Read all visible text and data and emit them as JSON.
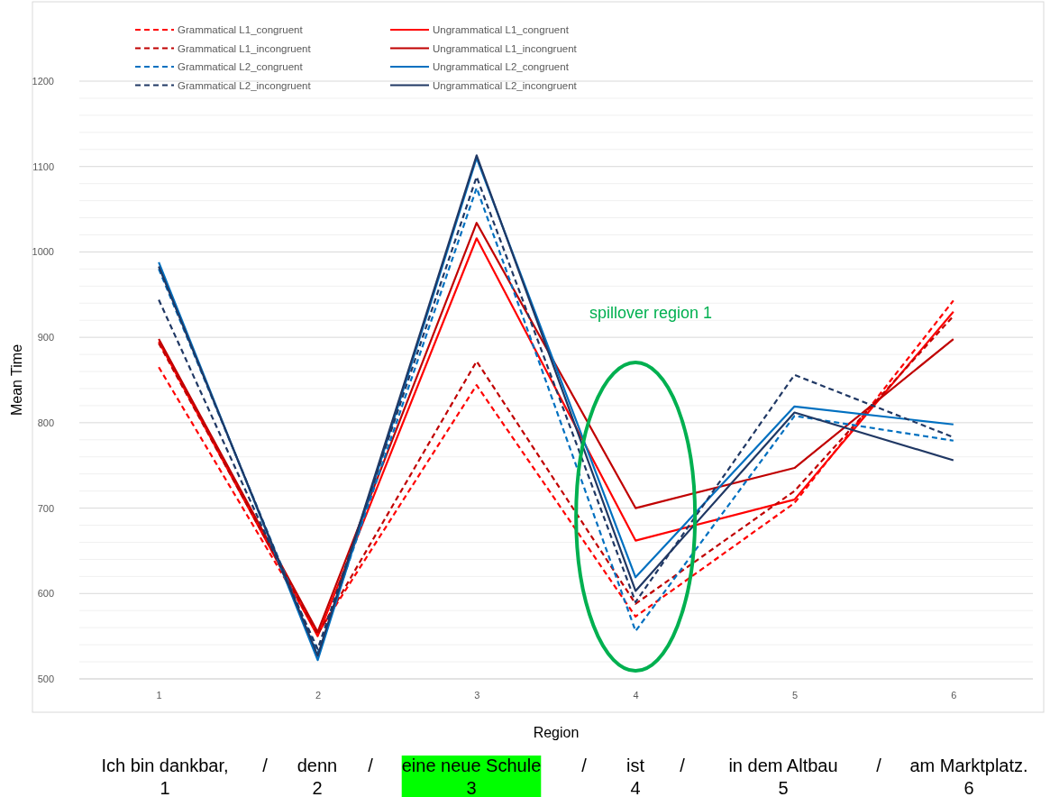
{
  "chart_data": {
    "type": "line",
    "xlabel": "Region",
    "ylabel": "Mean Time",
    "categories": [
      "1",
      "2",
      "3",
      "4",
      "5",
      "6"
    ],
    "ylim": [
      500,
      1200
    ],
    "yticks": [
      500,
      {
        "value": 520,
        "label": null
      },
      {
        "value": 540,
        "label": null
      },
      {
        "value": 560,
        "label": null
      },
      {
        "value": 580,
        "label": null
      },
      600,
      {
        "value": 620,
        "label": null
      },
      {
        "value": 640,
        "label": null
      },
      {
        "value": 660,
        "label": null
      },
      {
        "value": 680,
        "label": null
      },
      700,
      {
        "value": 720,
        "label": null
      },
      {
        "value": 740,
        "label": null
      },
      {
        "value": 760,
        "label": null
      },
      {
        "value": 780,
        "label": null
      },
      800,
      {
        "value": 820,
        "label": null
      },
      {
        "value": 840,
        "label": null
      },
      {
        "value": 860,
        "label": null
      },
      {
        "value": 880,
        "label": null
      },
      900,
      {
        "value": 920,
        "label": null
      },
      {
        "value": 940,
        "label": null
      },
      {
        "value": 960,
        "label": null
      },
      {
        "value": 980,
        "label": null
      },
      1000,
      {
        "value": 1020,
        "label": null
      },
      {
        "value": 1040,
        "label": null
      },
      {
        "value": 1060,
        "label": null
      },
      {
        "value": 1080,
        "label": null
      },
      1100,
      {
        "value": 1120,
        "label": null
      },
      {
        "value": 1140,
        "label": null
      },
      {
        "value": 1160,
        "label": null
      },
      {
        "value": 1180,
        "label": null
      },
      1200
    ],
    "grid": "y",
    "legend": "top",
    "marker": "none",
    "series": [
      {
        "name": "Grammatical L1_congruent",
        "color": "#ff0000",
        "line_style": "dashed",
        "values": [
          865,
          553,
          844,
          573,
          706,
          943
        ]
      },
      {
        "name": "Ungrammatical L1_congruent",
        "color": "#ff0000",
        "line_style": "solid",
        "values": [
          895,
          550,
          1016,
          662,
          710,
          930
        ]
      },
      {
        "name": "Grammatical L1_incongruent",
        "color": "#c00000",
        "line_style": "dashed",
        "values": [
          893,
          552,
          872,
          588,
          720,
          925
        ]
      },
      {
        "name": "Ungrammatical L1_incongruent",
        "color": "#c00000",
        "line_style": "solid",
        "values": [
          898,
          555,
          1034,
          700,
          747,
          898
        ]
      },
      {
        "name": "Grammatical L2_congruent",
        "color": "#0070c0",
        "line_style": "dashed",
        "values": [
          980,
          530,
          1075,
          556,
          808,
          779
        ]
      },
      {
        "name": "Ungrammatical L2_congruent",
        "color": "#0070c0",
        "line_style": "solid",
        "values": [
          988,
          522,
          1110,
          619,
          819,
          798
        ]
      },
      {
        "name": "Grammatical L2_incongruent",
        "color": "#203864",
        "line_style": "dashed",
        "values": [
          944,
          535,
          1088,
          590,
          856,
          783
        ]
      },
      {
        "name": "Ungrammatical L2_incongruent",
        "color": "#203864",
        "line_style": "solid",
        "values": [
          983,
          527,
          1113,
          603,
          812,
          756
        ]
      }
    ],
    "annotations": [
      "spillover region 1",
      "Ich bin dankbar,",
      "denn",
      "eine neue Schule",
      "ist",
      "in dem Altbau",
      "am Marktplatz.",
      "/",
      "/",
      "/",
      "/",
      "/",
      "1",
      "2",
      "3",
      "4",
      "5",
      "6"
    ]
  }
}
